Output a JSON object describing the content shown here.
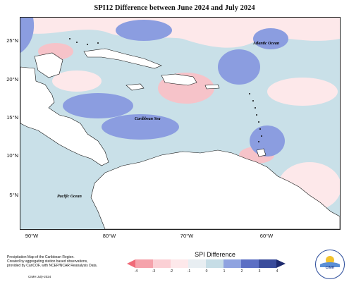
{
  "title": "SPI12 Difference between June 2024 and July 2024",
  "y_ticks": [
    "25°N",
    "20°N",
    "15°N",
    "10°N",
    "5°N"
  ],
  "x_ticks": [
    "90°W",
    "80°W",
    "70°W",
    "60°W"
  ],
  "ocean_labels": {
    "atlantic": "Atlantic Ocean",
    "caribbean": "Caribbean Sea",
    "pacific": "Pacific Ocean"
  },
  "footnote": {
    "line1": "Precipitation Map of the Caribbean Region.",
    "line2": "Created by aggregating station based observations,",
    "line3": "provided by CariCOF, with NCEP/NCAR Reanalysis Data."
  },
  "credit": "CIMH July-2024",
  "legend": {
    "title": "SPI Difference",
    "ticks": [
      "-4",
      "-3",
      "-2",
      "-1",
      "0",
      "1",
      "2",
      "3",
      "4"
    ],
    "colors": [
      "#f06a78",
      "#f5a2ab",
      "#fbd0d5",
      "#fde8ea",
      "#e8eef2",
      "#c6dde6",
      "#8fa3e0",
      "#5c6fc4",
      "#3a4c9c",
      "#1e2a6e"
    ]
  },
  "logo": {
    "text": "CIMH"
  },
  "map_colors": {
    "ocean_base": "#c9e0e8",
    "strong_blue": "#8b9de0",
    "light_pink": "#fbe3e6",
    "pink": "#f6c3c9",
    "land": "#ffffff",
    "coast": "#111111"
  }
}
